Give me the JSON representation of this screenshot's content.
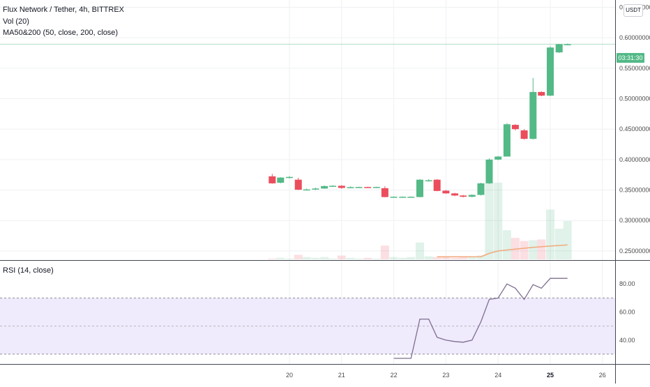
{
  "legend": {
    "symbol": "Flux Network / Tether, 4h, BITTREX",
    "volume": "Vol (20)",
    "ma": "MA50&200 (50, close, 200, close)",
    "rsi": "RSI (14, close)"
  },
  "currency_label": "USDT",
  "countdown": "03:31:30",
  "colors": {
    "up": "#53b987",
    "down": "#eb4d5c",
    "rsi_line": "#7e6f90",
    "rsi_band": "#efeafc",
    "ma_line": "#f2a97b",
    "last_price_line": "#53b987"
  },
  "chart_data": [
    {
      "type": "candlestick",
      "price_axis": {
        "ticks": [
          "0.65000000",
          "0.60000000",
          "0.55000000",
          "0.50000000",
          "0.45000000",
          "0.40000000",
          "0.35000000",
          "0.30000000",
          "0.25000000"
        ],
        "ylim": [
          0.235,
          0.662
        ]
      },
      "time_axis": {
        "ticks": [
          "20",
          "21",
          "22",
          "23",
          "24",
          "25",
          "26"
        ]
      },
      "last_price": 0.5895,
      "candles": [
        {
          "x": 19.67,
          "o": 0.3725,
          "h": 0.3765,
          "l": 0.3605,
          "c": 0.361
        },
        {
          "x": 19.83,
          "o": 0.362,
          "h": 0.371,
          "l": 0.361,
          "c": 0.3705
        },
        {
          "x": 20.0,
          "o": 0.3705,
          "h": 0.373,
          "l": 0.369,
          "c": 0.3715
        },
        {
          "x": 20.17,
          "o": 0.367,
          "h": 0.37,
          "l": 0.35,
          "c": 0.3505
        },
        {
          "x": 20.33,
          "o": 0.3505,
          "h": 0.3525,
          "l": 0.3495,
          "c": 0.351
        },
        {
          "x": 20.5,
          "o": 0.351,
          "h": 0.354,
          "l": 0.35,
          "c": 0.3525
        },
        {
          "x": 20.67,
          "o": 0.3525,
          "h": 0.3575,
          "l": 0.352,
          "c": 0.3565
        },
        {
          "x": 20.83,
          "o": 0.3565,
          "h": 0.358,
          "l": 0.3555,
          "c": 0.357
        },
        {
          "x": 21.0,
          "o": 0.357,
          "h": 0.358,
          "l": 0.352,
          "c": 0.3535
        },
        {
          "x": 21.17,
          "o": 0.354,
          "h": 0.356,
          "l": 0.353,
          "c": 0.3548
        },
        {
          "x": 21.33,
          "o": 0.3548,
          "h": 0.3555,
          "l": 0.354,
          "c": 0.355
        },
        {
          "x": 21.5,
          "o": 0.355,
          "h": 0.3555,
          "l": 0.354,
          "c": 0.3548
        },
        {
          "x": 21.67,
          "o": 0.3548,
          "h": 0.3555,
          "l": 0.354,
          "c": 0.355
        },
        {
          "x": 21.83,
          "o": 0.353,
          "h": 0.356,
          "l": 0.338,
          "c": 0.3385
        },
        {
          "x": 22.0,
          "o": 0.3385,
          "h": 0.3395,
          "l": 0.3375,
          "c": 0.339
        },
        {
          "x": 22.17,
          "o": 0.3385,
          "h": 0.3395,
          "l": 0.3375,
          "c": 0.339
        },
        {
          "x": 22.33,
          "o": 0.3385,
          "h": 0.3395,
          "l": 0.3375,
          "c": 0.339
        },
        {
          "x": 22.5,
          "o": 0.3385,
          "h": 0.368,
          "l": 0.338,
          "c": 0.367
        },
        {
          "x": 22.67,
          "o": 0.366,
          "h": 0.368,
          "l": 0.364,
          "c": 0.366
        },
        {
          "x": 22.83,
          "o": 0.367,
          "h": 0.368,
          "l": 0.348,
          "c": 0.3485
        },
        {
          "x": 23.0,
          "o": 0.349,
          "h": 0.35,
          "l": 0.344,
          "c": 0.3445
        },
        {
          "x": 23.17,
          "o": 0.3445,
          "h": 0.3455,
          "l": 0.34,
          "c": 0.341
        },
        {
          "x": 23.33,
          "o": 0.341,
          "h": 0.342,
          "l": 0.338,
          "c": 0.339
        },
        {
          "x": 23.5,
          "o": 0.339,
          "h": 0.343,
          "l": 0.338,
          "c": 0.342
        },
        {
          "x": 23.67,
          "o": 0.342,
          "h": 0.362,
          "l": 0.341,
          "c": 0.361
        },
        {
          "x": 23.83,
          "o": 0.361,
          "h": 0.402,
          "l": 0.36,
          "c": 0.4
        },
        {
          "x": 24.0,
          "o": 0.4,
          "h": 0.406,
          "l": 0.399,
          "c": 0.405
        },
        {
          "x": 24.17,
          "o": 0.405,
          "h": 0.46,
          "l": 0.405,
          "c": 0.458
        },
        {
          "x": 24.33,
          "o": 0.457,
          "h": 0.458,
          "l": 0.448,
          "c": 0.45
        },
        {
          "x": 24.5,
          "o": 0.448,
          "h": 0.45,
          "l": 0.433,
          "c": 0.434
        },
        {
          "x": 24.67,
          "o": 0.434,
          "h": 0.534,
          "l": 0.433,
          "c": 0.511
        },
        {
          "x": 24.83,
          "o": 0.511,
          "h": 0.512,
          "l": 0.504,
          "c": 0.505
        },
        {
          "x": 25.0,
          "o": 0.505,
          "h": 0.586,
          "l": 0.504,
          "c": 0.584
        },
        {
          "x": 25.17,
          "o": 0.576,
          "h": 0.59,
          "l": 0.575,
          "c": 0.5895
        },
        {
          "x": 25.33,
          "o": 0.589,
          "h": 0.5905,
          "l": 0.5885,
          "c": 0.5895
        }
      ],
      "volume": [
        0.01,
        0.02,
        0.01,
        0.06,
        0.03,
        0.02,
        0.03,
        0.01,
        0.05,
        0.02,
        0.01,
        0.02,
        0.01,
        0.18,
        0.03,
        0.02,
        0.03,
        0.22,
        0.04,
        0.03,
        0.03,
        0.02,
        0.04,
        0.03,
        0.05,
        1.0,
        1.0,
        0.38,
        0.28,
        0.24,
        0.25,
        0.26,
        0.65,
        0.4,
        0.5
      ],
      "ma50": [
        {
          "x": 22.83,
          "y": 0.2404
        },
        {
          "x": 23.33,
          "y": 0.2404
        },
        {
          "x": 23.67,
          "y": 0.2406
        },
        {
          "x": 23.83,
          "y": 0.246
        },
        {
          "x": 24.0,
          "y": 0.25
        },
        {
          "x": 24.33,
          "y": 0.253
        },
        {
          "x": 24.67,
          "y": 0.256
        },
        {
          "x": 25.0,
          "y": 0.258
        },
        {
          "x": 25.33,
          "y": 0.26
        }
      ]
    },
    {
      "type": "line",
      "name": "RSI (14, close)",
      "ticks": [
        "80.00",
        "60.00",
        "40.00"
      ],
      "ylim": [
        23,
        96
      ],
      "bands": [
        30,
        70
      ],
      "midline": 50,
      "x": [
        22.0,
        22.33,
        22.5,
        22.67,
        22.83,
        23.0,
        23.17,
        23.33,
        23.5,
        23.67,
        23.83,
        24.0,
        24.17,
        24.33,
        24.5,
        24.67,
        24.83,
        25.0,
        25.17,
        25.33
      ],
      "y": [
        27,
        27,
        55,
        55,
        42,
        40,
        39,
        38.5,
        40,
        53,
        69,
        70,
        80,
        77,
        69,
        79.5,
        77,
        84,
        84,
        84
      ]
    }
  ]
}
